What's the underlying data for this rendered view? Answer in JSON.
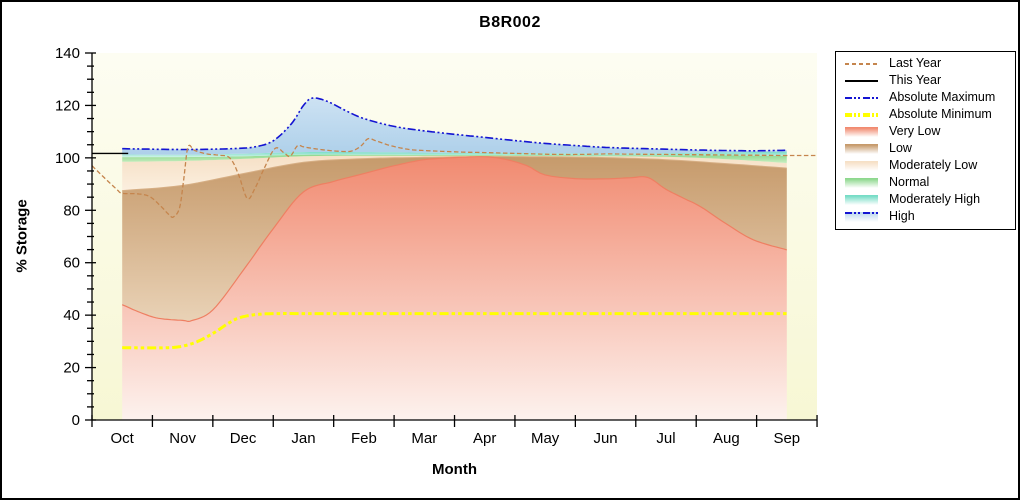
{
  "window": {
    "title": "B8R002",
    "border_color": "#000000"
  },
  "chart_data": {
    "type": "area",
    "title": "B8R002",
    "xlabel": "Month",
    "ylabel": "% Storage",
    "ylim": [
      0,
      140
    ],
    "y_major_ticks": [
      0,
      20,
      40,
      60,
      80,
      100,
      120,
      140
    ],
    "y_minor_step": 5,
    "grid": false,
    "legend_position": "right",
    "months": [
      "Oct",
      "Nov",
      "Dec",
      "Jan",
      "Feb",
      "Mar",
      "Apr",
      "May",
      "Jun",
      "Jul",
      "Aug",
      "Sep"
    ],
    "boundaries": {
      "zero": {
        "x": [
          0,
          11
        ],
        "v": [
          0,
          0
        ]
      },
      "very_low_top": {
        "x": [
          0,
          0.3,
          0.6,
          1,
          1.15,
          1.5,
          2,
          2.5,
          3,
          3.5,
          4,
          4.5,
          5,
          5.5,
          6,
          6.35,
          6.7,
          7,
          7.5,
          8,
          8.4,
          8.7,
          9,
          9.3,
          9.57,
          10,
          10.45,
          11
        ],
        "v": [
          44,
          41,
          38.8,
          38,
          37.9,
          42,
          57,
          73,
          87,
          91,
          94,
          97,
          99.3,
          100.1,
          100.4,
          99.4,
          97,
          93.5,
          92.1,
          92,
          92.4,
          92.5,
          88,
          84.5,
          81.4,
          74.8,
          68.7,
          64.9
        ]
      },
      "mod_low_top": {
        "x": [
          0,
          1,
          2,
          3,
          4,
          5,
          6,
          7,
          8,
          9,
          10,
          11
        ],
        "v": [
          87.5,
          89.5,
          94.0,
          98.3,
          99.7,
          100.2,
          100.5,
          100.4,
          100.1,
          99.3,
          97.8,
          96.1
        ]
      },
      "normal_bottom": {
        "x": [
          0,
          1,
          2,
          3,
          4,
          5,
          6,
          7,
          8,
          9,
          10,
          11
        ],
        "v": [
          98.5,
          98.8,
          99.6,
          100.6,
          100.8,
          100.8,
          100.8,
          100.7,
          100.6,
          100.4,
          99.5,
          98.0
        ]
      },
      "mod_high_bottom": {
        "x": [
          0,
          1,
          2,
          3,
          4,
          5,
          6,
          7,
          8,
          9,
          10,
          11
        ],
        "v": [
          100.3,
          100.3,
          100.6,
          101.2,
          101.2,
          101.1,
          101.1,
          101.0,
          100.9,
          100.9,
          100.9,
          100.8
        ]
      },
      "high_bottom": {
        "x": [
          0,
          1,
          2,
          3,
          4,
          5,
          6,
          7,
          8,
          9,
          10,
          11
        ],
        "v": [
          101.3,
          101.2,
          101.6,
          102.2,
          102.2,
          102.0,
          101.9,
          101.8,
          101.7,
          101.8,
          102.1,
          102.4
        ]
      },
      "abs_max": {
        "x": [
          0,
          0.5,
          1,
          1.5,
          1.9,
          2.2,
          2.5,
          2.8,
          3,
          3.15,
          3.4,
          3.7,
          4,
          4.5,
          5,
          5.5,
          6,
          6.5,
          7,
          7.5,
          8,
          8.5,
          9,
          9.5,
          10,
          10.5,
          11
        ],
        "v": [
          103.5,
          103.3,
          103.2,
          103.3,
          103.6,
          104.2,
          106.5,
          113,
          120,
          122.8,
          121.5,
          118,
          115,
          112,
          110.3,
          109,
          107.8,
          106.6,
          105.5,
          104.7,
          104,
          103.6,
          103.3,
          103,
          102.8,
          102.7,
          102.9
        ]
      },
      "abs_min": {
        "x": [
          0,
          0.5,
          0.9,
          1.2,
          1.5,
          1.8,
          2,
          2.3,
          2.6,
          3,
          4,
          5,
          6,
          7,
          8,
          9,
          10,
          11
        ],
        "v": [
          27.6,
          27.5,
          27.8,
          29.5,
          33,
          37.5,
          39.4,
          40.4,
          40.6,
          40.6,
          40.6,
          40.6,
          40.6,
          40.6,
          40.6,
          40.6,
          40.6,
          40.6
        ]
      }
    },
    "line_series": [
      {
        "name": "last_year",
        "label": "Last Year",
        "x": [
          -0.5,
          -0.3,
          -0.1,
          0,
          0.25,
          0.45,
          0.62,
          0.78,
          0.85,
          0.95,
          1.02,
          1.09,
          1.2,
          1.4,
          1.6,
          1.78,
          1.92,
          2.07,
          2.2,
          2.35,
          2.53,
          2.68,
          2.78,
          2.9,
          3.0,
          3.15,
          3.35,
          3.6,
          3.8,
          3.95,
          4.07,
          4.2,
          4.45,
          4.75,
          5,
          5.5,
          6,
          6.5,
          7,
          7.5,
          8,
          8.5,
          9,
          9.5,
          10,
          10.5,
          11,
          11.5
        ],
        "v": [
          97,
          92.5,
          88.2,
          86.5,
          86.3,
          85.3,
          82,
          78.2,
          77.5,
          81,
          92,
          104.2,
          102.8,
          101.5,
          101,
          100,
          94,
          84.5,
          88.5,
          96,
          103.6,
          101.9,
          100.6,
          104.6,
          104.2,
          103.6,
          103,
          102.5,
          102.6,
          104.5,
          107.3,
          106.5,
          104.6,
          103.2,
          102.8,
          102.3,
          102,
          101.7,
          101.4,
          101.3,
          101.5,
          101.4,
          101.3,
          101.2,
          101.1,
          101,
          100.9,
          100.9
        ]
      },
      {
        "name": "this_year",
        "label": "This Year",
        "x": [
          -0.5,
          0.1
        ],
        "v": [
          101.7,
          101.7
        ]
      }
    ],
    "bands": [
      {
        "name": "Very Low",
        "key": "very_low",
        "lower": "zero",
        "upper": "very_low_top"
      },
      {
        "name": "Low",
        "key": "low",
        "lower": "very_low_top",
        "upper": "mod_low_top"
      },
      {
        "name": "Moderately Low",
        "key": "moderately_low",
        "lower": "mod_low_top",
        "upper": "normal_bottom"
      },
      {
        "name": "Normal",
        "key": "normal",
        "lower": "normal_bottom",
        "upper": "mod_high_bottom"
      },
      {
        "name": "Moderately High",
        "key": "moderately_high",
        "lower": "mod_high_bottom",
        "upper": "high_bottom"
      },
      {
        "name": "High",
        "key": "high",
        "lower": "high_bottom",
        "upper": "abs_max"
      }
    ],
    "band_colors": {
      "very_low": {
        "top": "#f18a70",
        "bottom": "#fdf2ee",
        "edge": "#ee7f62"
      },
      "low": {
        "top": "#c69a6b",
        "bottom": "#e9d2b6",
        "edge": "#d6ae84"
      },
      "moderately_low": {
        "top": "#f6e0c6",
        "bottom": "#fbefdf"
      },
      "normal": {
        "top": "#8ed88e",
        "bottom": "#c9eec2"
      },
      "moderately_high": {
        "top": "#76dcc6",
        "bottom": "#cff2e8"
      },
      "high": {
        "top": "#cde2f3",
        "bottom": "#aed0ea"
      }
    },
    "line_colors": {
      "last_year": "#c5854d",
      "this_year": "#000000",
      "absolute_maximum": "#1414d2",
      "absolute_minimum": "#ffff00"
    },
    "plot_background": {
      "top": "#fdfdf2",
      "bottom": "#f7f7d4"
    }
  },
  "legend": {
    "items": [
      {
        "label": "Last Year",
        "swatch": "line-dashed",
        "color": "#c5854d"
      },
      {
        "label": "This Year",
        "swatch": "line-solid",
        "color": "#000000"
      },
      {
        "label": "Absolute Maximum",
        "swatch": "line-dashdot",
        "color": "#1414d2"
      },
      {
        "label": "Absolute Minimum",
        "swatch": "line-dashdot-thick",
        "color": "#ffff00"
      },
      {
        "label": "Very Low",
        "swatch": "band",
        "color": "#f18a70"
      },
      {
        "label": "Low",
        "swatch": "band",
        "color": "#c69a6b"
      },
      {
        "label": "Moderately Low",
        "swatch": "band",
        "color": "#f6e0c6"
      },
      {
        "label": "Normal",
        "swatch": "band",
        "color": "#8ed88e"
      },
      {
        "label": "Moderately High",
        "swatch": "band",
        "color": "#76dcc6"
      },
      {
        "label": "High",
        "swatch": "band-line",
        "color": "#1414d2",
        "band_color": "#b8d5ec"
      }
    ]
  }
}
